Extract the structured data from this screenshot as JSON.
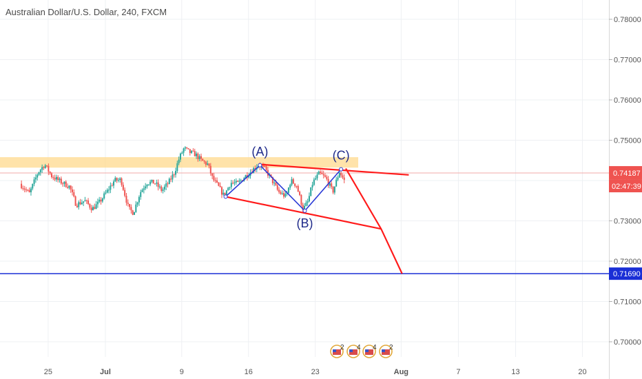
{
  "chart_data": {
    "type": "candlestick",
    "title": "Australian Dollar/U.S. Dollar, 240, FXCM",
    "y_axis": {
      "position": "right",
      "range": [
        0.696,
        0.783
      ],
      "ticks": [
        "0.78000",
        "0.77000",
        "0.76000",
        "0.75000",
        "0.74000",
        "0.73000",
        "0.72000",
        "0.71000",
        "0.70000"
      ],
      "tick_values": [
        0.78,
        0.77,
        0.76,
        0.75,
        0.74,
        0.73,
        0.72,
        0.71,
        0.7
      ]
    },
    "x_axis": {
      "ticks": [
        "25",
        "Jul",
        "9",
        "16",
        "23",
        "Aug",
        "7",
        "13",
        "20"
      ],
      "tick_days": [
        -6,
        0,
        8,
        15,
        22,
        31,
        37,
        43,
        50
      ],
      "bold_ticks": [
        "Jul",
        "Aug"
      ]
    },
    "grid": true,
    "last_price": {
      "value": "0.74187",
      "countdown": "02:47:39",
      "color": "#ef5350"
    },
    "support_line": {
      "value": "0.71690",
      "color": "#1a2fd6"
    },
    "resistance_zone": {
      "low": 0.7432,
      "high": 0.7458,
      "color": "#ffd98e"
    },
    "wave_labels": [
      {
        "label": "(A)",
        "day": 16.2,
        "price": 0.7438
      },
      {
        "label": "(B)",
        "day": 20.9,
        "price": 0.7325
      },
      {
        "label": "(C)",
        "day": 24.7,
        "price": 0.7428
      }
    ],
    "wave_path": [
      [
        12.6,
        0.736
      ],
      [
        16.2,
        0.7438
      ],
      [
        20.9,
        0.7325
      ],
      [
        24.7,
        0.7428
      ]
    ],
    "channel_upper": [
      [
        16.2,
        0.744
      ],
      [
        31.8,
        0.7414
      ]
    ],
    "channel_lower": [
      [
        12.6,
        0.736
      ],
      [
        28.9,
        0.728
      ]
    ],
    "projection": [
      [
        25.2,
        0.743
      ],
      [
        28.9,
        0.728
      ],
      [
        31.1,
        0.7169
      ]
    ],
    "colors": {
      "up": "#26a69a",
      "down": "#ef5350",
      "line": "#ff1a1a",
      "wave": "#1f2a8a"
    },
    "ohlc_path": [
      [
        -8.8,
        0.7392
      ],
      [
        -7.8,
        0.7368
      ],
      [
        -6.9,
        0.742
      ],
      [
        -6.2,
        0.744
      ],
      [
        -5.5,
        0.7412
      ],
      [
        -4.6,
        0.7398
      ],
      [
        -3.6,
        0.7385
      ],
      [
        -2.9,
        0.734
      ],
      [
        -2.0,
        0.735
      ],
      [
        -1.2,
        0.733
      ],
      [
        -0.5,
        0.7345
      ],
      [
        0.4,
        0.7375
      ],
      [
        1.1,
        0.74
      ],
      [
        1.8,
        0.7402
      ],
      [
        2.6,
        0.733
      ],
      [
        3.1,
        0.732
      ],
      [
        3.8,
        0.737
      ],
      [
        4.5,
        0.7395
      ],
      [
        5.3,
        0.7395
      ],
      [
        6.1,
        0.7375
      ],
      [
        6.8,
        0.7395
      ],
      [
        7.4,
        0.742
      ],
      [
        7.9,
        0.7455
      ],
      [
        8.4,
        0.748
      ],
      [
        9.0,
        0.747
      ],
      [
        9.6,
        0.7465
      ],
      [
        10.2,
        0.745
      ],
      [
        10.9,
        0.744
      ],
      [
        11.4,
        0.7405
      ],
      [
        12.0,
        0.7385
      ],
      [
        12.6,
        0.7362
      ],
      [
        13.3,
        0.7395
      ],
      [
        14.0,
        0.7392
      ],
      [
        14.7,
        0.7408
      ],
      [
        15.4,
        0.7422
      ],
      [
        16.2,
        0.744
      ],
      [
        16.9,
        0.7428
      ],
      [
        17.6,
        0.7402
      ],
      [
        18.3,
        0.7372
      ],
      [
        19.1,
        0.736
      ],
      [
        19.6,
        0.74
      ],
      [
        20.2,
        0.7388
      ],
      [
        20.9,
        0.7328
      ],
      [
        21.4,
        0.7348
      ],
      [
        21.9,
        0.7395
      ],
      [
        22.6,
        0.7418
      ],
      [
        23.3,
        0.7405
      ],
      [
        24.0,
        0.7372
      ],
      [
        24.7,
        0.7422
      ],
      [
        25.2,
        0.74
      ]
    ]
  }
}
